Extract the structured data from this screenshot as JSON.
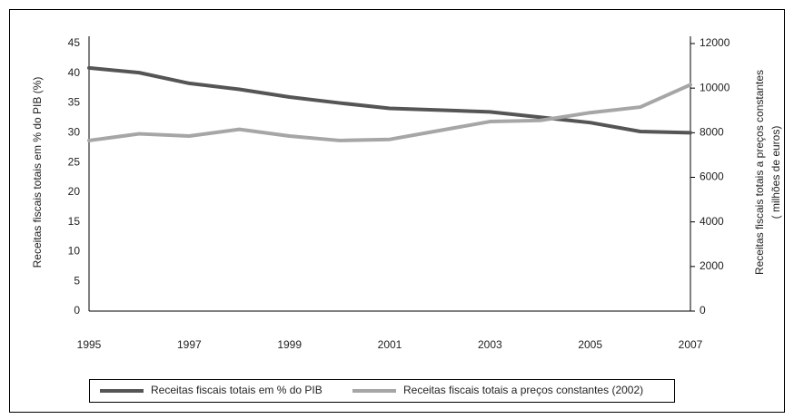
{
  "chart_data": {
    "type": "line",
    "ylabel": "Receitas fiscais totais em % do PIB (%)",
    "y2label": [
      "Receitas fiscais totais a preços constantes",
      "( milhões de euros)"
    ],
    "x": [
      1995,
      1996,
      1997,
      1998,
      1999,
      2000,
      2001,
      2002,
      2003,
      2004,
      2005,
      2006,
      2007
    ],
    "xlim": [
      1995,
      2007
    ],
    "xticks": [
      1995,
      1997,
      1999,
      2001,
      2003,
      2005,
      2007
    ],
    "ylim": [
      0,
      45
    ],
    "yticks": [
      0,
      5,
      10,
      15,
      20,
      25,
      30,
      35,
      40,
      45
    ],
    "y2lim": [
      0,
      12000
    ],
    "y2ticks": [
      0,
      2000,
      4000,
      6000,
      8000,
      10000,
      12000
    ],
    "grid": false,
    "series": [
      {
        "name": "Receitas fiscais totais em % do PIB",
        "color": "#555555",
        "values": [
          40.9,
          40.1,
          38.3,
          37.3,
          36.0,
          35.0,
          34.1,
          33.8,
          33.5,
          32.6,
          31.7,
          30.2,
          30.0
        ]
      },
      {
        "name": "Receitas fiscais totais a preços constantes (2002)",
        "color": "#a6a6a6",
        "axis": "y2",
        "values": [
          7650,
          7950,
          7850,
          8150,
          7850,
          7650,
          7700,
          8100,
          8500,
          8550,
          8900,
          9150,
          10150
        ]
      }
    ]
  }
}
